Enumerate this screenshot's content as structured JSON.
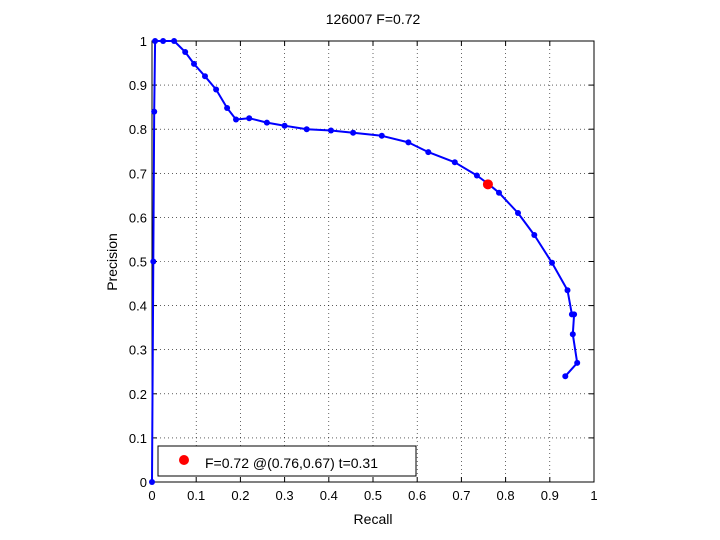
{
  "chart_data": {
    "type": "line",
    "title": "126007 F=0.72",
    "xlabel": "Recall",
    "ylabel": "Precision",
    "xlim": [
      0,
      1
    ],
    "ylim": [
      0,
      1
    ],
    "x_ticks": [
      "0",
      "0.1",
      "0.2",
      "0.3",
      "0.4",
      "0.5",
      "0.6",
      "0.7",
      "0.8",
      "0.9",
      "1"
    ],
    "y_ticks": [
      "0",
      "0.1",
      "0.2",
      "0.3",
      "0.4",
      "0.5",
      "0.6",
      "0.7",
      "0.8",
      "0.9",
      "1"
    ],
    "grid": true,
    "legend": {
      "placement": "bottom-left",
      "entries": [
        {
          "label": "F=0.72 @(0.76,0.67) t=0.31",
          "color": "#ff0000",
          "marker": "circle"
        }
      ]
    },
    "series": [
      {
        "color": "#0000ff",
        "marker": "dot",
        "x": [
          0.935,
          0.962,
          0.952,
          0.955,
          0.95,
          0.94,
          0.905,
          0.865,
          0.828,
          0.785,
          0.762,
          0.735,
          0.685,
          0.625,
          0.58,
          0.52,
          0.455,
          0.405,
          0.35,
          0.3,
          0.26,
          0.22,
          0.19,
          0.17,
          0.145,
          0.12,
          0.095,
          0.075,
          0.05,
          0.025,
          0.007,
          0.005,
          0.003,
          0.0
        ],
        "y": [
          0.24,
          0.27,
          0.335,
          0.38,
          0.38,
          0.435,
          0.497,
          0.56,
          0.61,
          0.656,
          0.675,
          0.695,
          0.725,
          0.748,
          0.77,
          0.785,
          0.792,
          0.797,
          0.8,
          0.808,
          0.815,
          0.825,
          0.822,
          0.848,
          0.89,
          0.92,
          0.948,
          0.975,
          1.0,
          1.0,
          1.0,
          0.84,
          0.5,
          0.0
        ]
      }
    ],
    "highlight": {
      "x": 0.76,
      "y": 0.675,
      "color": "#ff0000"
    }
  }
}
